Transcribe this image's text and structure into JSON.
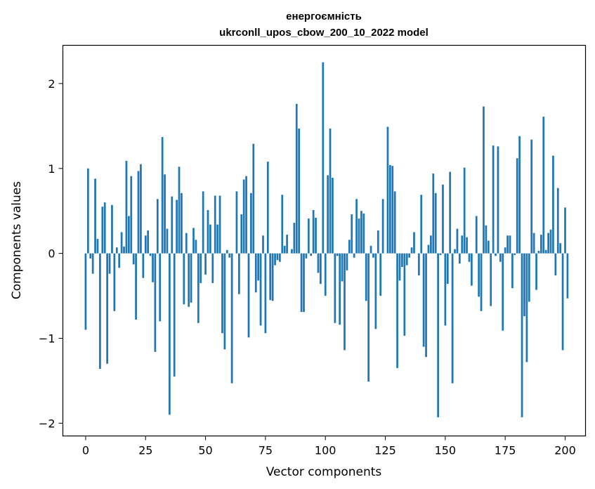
{
  "chart_data": {
    "type": "bar",
    "title_line1": "енергоємність",
    "title_line2": "ukrconll_upos_cbow_200_10_2022 model",
    "xlabel": "Vector components",
    "ylabel": "Components values",
    "xlim": [
      -9.5,
      208.5
    ],
    "ylim": [
      -2.15,
      2.45
    ],
    "xticks": [
      0,
      25,
      50,
      75,
      100,
      125,
      150,
      175,
      200
    ],
    "yticks": [
      -2,
      -1,
      0,
      1,
      2
    ],
    "xtick_labels": [
      "0",
      "25",
      "50",
      "75",
      "100",
      "125",
      "150",
      "175",
      "200"
    ],
    "ytick_labels": [
      "−2",
      "−1",
      "0",
      "1",
      "2"
    ],
    "bar_color": "#1f77b4",
    "values": [
      -0.9,
      1.0,
      -0.06,
      -0.24,
      0.88,
      0.17,
      -1.36,
      0.55,
      0.6,
      -1.3,
      -0.24,
      0.57,
      -0.68,
      0.07,
      -0.17,
      0.25,
      0.08,
      1.09,
      0.44,
      0.91,
      -0.13,
      -0.78,
      0.97,
      1.05,
      -0.29,
      0.21,
      0.27,
      -0.03,
      -0.34,
      -1.16,
      0.64,
      -0.8,
      1.37,
      0.93,
      0.29,
      -1.9,
      0.67,
      -1.45,
      0.63,
      1.02,
      0.71,
      -0.6,
      0.24,
      -0.63,
      -0.58,
      0.3,
      0.16,
      -0.82,
      -0.35,
      0.73,
      -0.25,
      0.51,
      0.34,
      -0.35,
      0.68,
      0.34,
      0.68,
      -0.94,
      -1.13,
      0.04,
      -0.05,
      -1.53,
      0.0,
      0.73,
      -0.48,
      0.46,
      0.87,
      0.91,
      -0.99,
      0.71,
      1.29,
      -0.46,
      -0.32,
      -0.85,
      0.21,
      -0.94,
      1.08,
      -0.55,
      -0.56,
      -0.14,
      -0.08,
      -0.1,
      0.69,
      0.09,
      0.22,
      0.0,
      0.05,
      0.36,
      1.76,
      1.47,
      -0.69,
      -0.69,
      -0.06,
      0.41,
      -0.03,
      0.51,
      0.42,
      -0.23,
      -0.36,
      2.25,
      -0.5,
      0.92,
      1.47,
      0.89,
      -0.82,
      -0.03,
      -0.84,
      -0.33,
      -1.14,
      -0.2,
      0.16,
      0.46,
      -0.05,
      0.64,
      0.41,
      0.5,
      0.47,
      -0.56,
      -1.51,
      0.09,
      -0.05,
      -0.89,
      0.27,
      -0.5,
      0.64,
      0.0,
      1.49,
      1.04,
      1.03,
      0.73,
      -1.35,
      -0.32,
      -0.16,
      -0.97,
      -0.14,
      -0.05,
      0.07,
      0.25,
      0.0,
      -0.26,
      0.69,
      -1.1,
      -1.22,
      0.1,
      0.21,
      0.94,
      0.71,
      -1.93,
      -0.02,
      0.81,
      -0.85,
      -0.36,
      0.96,
      -1.53,
      0.05,
      0.29,
      -0.12,
      0.21,
      1.01,
      0.19,
      -0.1,
      -0.38,
      0.0,
      0.44,
      -0.51,
      -0.68,
      1.73,
      0.33,
      0.15,
      -0.62,
      1.27,
      -0.03,
      1.26,
      -0.1,
      -0.91,
      0.07,
      0.21,
      0.21,
      -0.41,
      -0.02,
      1.12,
      1.38,
      -1.93,
      -0.74,
      -1.28,
      -0.57,
      1.34,
      0.24,
      -0.43,
      0.03,
      0.22,
      1.61,
      0.04,
      0.24,
      0.28,
      1.15,
      -0.26,
      0.77,
      0.12,
      -1.14,
      0.54,
      -0.53
    ]
  }
}
